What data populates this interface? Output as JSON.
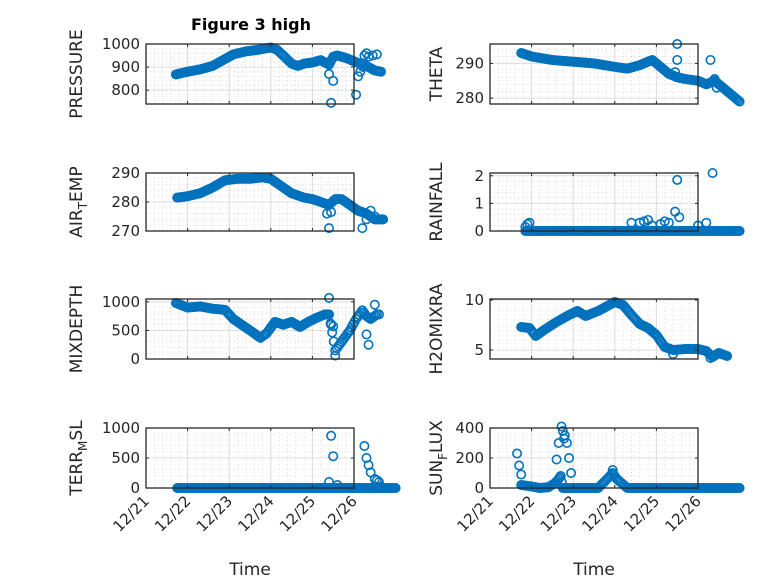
{
  "figure_title": "Figure 3 high",
  "chart_data": [
    {
      "type": "scatter",
      "id": "pressure",
      "ylabel": "PRESSURE",
      "title": "Figure 3 high",
      "ylim": [
        740,
        1000
      ],
      "yticks": [
        800,
        900,
        1000
      ],
      "x_ticks": [
        "12/21",
        "12/22",
        "12/23",
        "12/24",
        "12/25",
        "12/26"
      ],
      "show_xticklabels": false,
      "grid": true,
      "x_unit": "days since 12/21",
      "curve": [
        [
          0.72,
          868
        ],
        [
          1.0,
          880
        ],
        [
          1.3,
          890
        ],
        [
          1.6,
          905
        ],
        [
          1.9,
          935
        ],
        [
          2.1,
          955
        ],
        [
          2.4,
          968
        ],
        [
          2.7,
          975
        ],
        [
          2.9,
          982
        ],
        [
          3.0,
          985
        ],
        [
          3.15,
          975
        ],
        [
          3.3,
          950
        ],
        [
          3.5,
          915
        ],
        [
          3.65,
          905
        ],
        [
          3.8,
          915
        ],
        [
          4.0,
          920
        ],
        [
          4.2,
          930
        ],
        [
          4.3,
          920
        ],
        [
          4.4,
          910
        ],
        [
          4.5,
          945
        ],
        [
          4.6,
          950
        ],
        [
          4.8,
          940
        ],
        [
          5.0,
          925
        ],
        [
          5.2,
          910
        ],
        [
          5.35,
          900
        ],
        [
          5.5,
          885
        ],
        [
          5.65,
          880
        ]
      ],
      "outliers": [
        [
          4.4,
          870
        ],
        [
          4.5,
          840
        ],
        [
          4.45,
          745
        ],
        [
          5.05,
          780
        ],
        [
          5.1,
          860
        ],
        [
          5.15,
          880
        ],
        [
          5.22,
          900
        ],
        [
          5.3,
          960
        ],
        [
          5.25,
          950
        ],
        [
          5.35,
          945
        ],
        [
          5.45,
          950
        ],
        [
          5.55,
          955
        ]
      ]
    },
    {
      "type": "scatter",
      "id": "theta",
      "ylabel": "THETA",
      "ylim": [
        278.3,
        295.6
      ],
      "yticks": [
        280,
        290
      ],
      "x_ticks": [
        "12/21",
        "12/22",
        "12/23",
        "12/24",
        "12/25",
        "12/26"
      ],
      "show_xticklabels": false,
      "grid": true,
      "curve": [
        [
          0.75,
          293
        ],
        [
          1.0,
          292
        ],
        [
          1.5,
          291
        ],
        [
          2.0,
          290.5
        ],
        [
          2.5,
          290
        ],
        [
          3.0,
          289
        ],
        [
          3.3,
          288.5
        ],
        [
          3.6,
          289.5
        ],
        [
          3.9,
          291
        ],
        [
          4.1,
          289
        ],
        [
          4.3,
          287
        ],
        [
          4.5,
          286
        ],
        [
          4.7,
          285.5
        ],
        [
          5.0,
          285
        ],
        [
          5.2,
          284
        ],
        [
          5.4,
          285
        ],
        [
          5.6,
          283
        ],
        [
          5.8,
          281
        ],
        [
          6.0,
          279
        ]
      ],
      "outliers": [
        [
          4.5,
          295.6
        ],
        [
          4.5,
          291
        ],
        [
          4.45,
          287.5
        ],
        [
          5.3,
          291
        ],
        [
          5.4,
          285.5
        ],
        [
          5.45,
          283
        ]
      ]
    },
    {
      "type": "scatter",
      "id": "airtemp",
      "ylabel": "AIR_TEMP",
      "ylim": [
        270,
        290
      ],
      "yticks": [
        270,
        280,
        290
      ],
      "x_ticks": [
        "12/21",
        "12/22",
        "12/23",
        "12/24",
        "12/25",
        "12/26"
      ],
      "show_xticklabels": false,
      "grid": true,
      "curve": [
        [
          0.75,
          281.5
        ],
        [
          1.0,
          282
        ],
        [
          1.3,
          283
        ],
        [
          1.6,
          285
        ],
        [
          1.9,
          287.5
        ],
        [
          2.2,
          288
        ],
        [
          2.5,
          288
        ],
        [
          2.8,
          288.5
        ],
        [
          3.0,
          288
        ],
        [
          3.2,
          286
        ],
        [
          3.5,
          283
        ],
        [
          3.8,
          281.5
        ],
        [
          4.0,
          281
        ],
        [
          4.2,
          280
        ],
        [
          4.4,
          279
        ],
        [
          4.55,
          281
        ],
        [
          4.7,
          281
        ],
        [
          4.9,
          279
        ],
        [
          5.1,
          277
        ],
        [
          5.3,
          276
        ],
        [
          5.5,
          274
        ],
        [
          5.7,
          274
        ]
      ],
      "outliers": [
        [
          4.35,
          276
        ],
        [
          4.45,
          276.5
        ],
        [
          4.4,
          271
        ],
        [
          5.2,
          271
        ],
        [
          5.3,
          274
        ],
        [
          5.4,
          277
        ],
        [
          5.5,
          275
        ]
      ]
    },
    {
      "type": "scatter",
      "id": "rainfall",
      "ylabel": "RAINFALL",
      "ylim": [
        0,
        2.1
      ],
      "yticks": [
        0,
        1,
        2
      ],
      "x_ticks": [
        "12/21",
        "12/22",
        "12/23",
        "12/24",
        "12/25",
        "12/26"
      ],
      "show_xticklabels": false,
      "grid": true,
      "curve": [
        [
          0.85,
          0
        ],
        [
          6.0,
          0
        ]
      ],
      "outliers": [
        [
          0.85,
          0.15
        ],
        [
          0.9,
          0.25
        ],
        [
          0.95,
          0.3
        ],
        [
          3.4,
          0.3
        ],
        [
          3.6,
          0.3
        ],
        [
          3.7,
          0.35
        ],
        [
          3.8,
          0.4
        ],
        [
          3.9,
          0.2
        ],
        [
          4.1,
          0.25
        ],
        [
          4.2,
          0.35
        ],
        [
          4.3,
          0.3
        ],
        [
          4.45,
          0.7
        ],
        [
          4.5,
          1.85
        ],
        [
          4.55,
          0.5
        ],
        [
          5.0,
          0.2
        ],
        [
          5.2,
          0.3
        ],
        [
          5.35,
          2.1
        ]
      ]
    },
    {
      "type": "scatter",
      "id": "mixdepth",
      "ylabel": "MIXDEPTH",
      "ylim": [
        0,
        1050
      ],
      "yticks": [
        0,
        500,
        1000
      ],
      "x_ticks": [
        "12/21",
        "12/22",
        "12/23",
        "12/24",
        "12/25",
        "12/26"
      ],
      "show_xticklabels": false,
      "grid": true,
      "curve": [
        [
          0.72,
          980
        ],
        [
          1.0,
          900
        ],
        [
          1.3,
          920
        ],
        [
          1.6,
          880
        ],
        [
          1.9,
          860
        ],
        [
          2.1,
          700
        ],
        [
          2.3,
          600
        ],
        [
          2.6,
          450
        ],
        [
          2.75,
          370
        ],
        [
          2.9,
          450
        ],
        [
          3.1,
          650
        ],
        [
          3.3,
          600
        ],
        [
          3.5,
          650
        ],
        [
          3.7,
          560
        ],
        [
          3.9,
          650
        ],
        [
          4.1,
          720
        ],
        [
          4.3,
          780
        ],
        [
          4.4,
          780
        ],
        [
          4.55,
          150
        ],
        [
          4.7,
          300
        ],
        [
          4.9,
          500
        ],
        [
          5.05,
          700
        ],
        [
          5.2,
          850
        ],
        [
          5.3,
          750
        ],
        [
          5.4,
          700
        ],
        [
          5.55,
          780
        ]
      ],
      "outliers": [
        [
          4.4,
          1070
        ],
        [
          4.45,
          600
        ],
        [
          4.5,
          570
        ],
        [
          4.55,
          60
        ],
        [
          5.3,
          430
        ],
        [
          5.35,
          250
        ],
        [
          5.5,
          950
        ],
        [
          5.6,
          780
        ]
      ]
    },
    {
      "type": "scatter",
      "id": "h2omixra",
      "ylabel": "H2OMIXRA",
      "ylim": [
        4.1,
        10.1
      ],
      "yticks": [
        5,
        10
      ],
      "x_ticks": [
        "12/21",
        "12/22",
        "12/23",
        "12/24",
        "12/25",
        "12/26"
      ],
      "show_xticklabels": false,
      "grid": true,
      "curve": [
        [
          0.75,
          7.3
        ],
        [
          0.95,
          7.2
        ],
        [
          1.1,
          6.4
        ],
        [
          1.3,
          7.0
        ],
        [
          1.6,
          7.8
        ],
        [
          1.9,
          8.5
        ],
        [
          2.1,
          8.9
        ],
        [
          2.3,
          8.4
        ],
        [
          2.6,
          8.9
        ],
        [
          3.0,
          9.8
        ],
        [
          3.2,
          9.5
        ],
        [
          3.4,
          8.5
        ],
        [
          3.6,
          7.6
        ],
        [
          3.8,
          7.2
        ],
        [
          4.0,
          6.5
        ],
        [
          4.2,
          5.3
        ],
        [
          4.4,
          5.0
        ],
        [
          4.7,
          5.1
        ],
        [
          5.0,
          5.1
        ],
        [
          5.2,
          4.9
        ],
        [
          5.35,
          4.3
        ],
        [
          5.5,
          4.7
        ],
        [
          5.7,
          4.4
        ]
      ],
      "outliers": [
        [
          4.4,
          4.6
        ],
        [
          5.3,
          4.2
        ]
      ]
    },
    {
      "type": "scatter",
      "id": "terrmsl",
      "ylabel": "TERR_MSL",
      "ylim": [
        0,
        1000
      ],
      "yticks": [
        0,
        500,
        1000
      ],
      "x_ticks": [
        "12/21",
        "12/22",
        "12/23",
        "12/24",
        "12/25",
        "12/26"
      ],
      "show_xticklabels": true,
      "xlabel": "Time",
      "grid": true,
      "curve": [
        [
          0.75,
          0
        ],
        [
          6.0,
          0
        ]
      ],
      "outliers": [
        [
          4.45,
          870
        ],
        [
          4.5,
          530
        ],
        [
          4.4,
          100
        ],
        [
          4.6,
          50
        ],
        [
          5.25,
          700
        ],
        [
          5.3,
          500
        ],
        [
          5.35,
          380
        ],
        [
          5.4,
          260
        ],
        [
          5.5,
          150
        ],
        [
          5.55,
          130
        ],
        [
          5.6,
          100
        ],
        [
          5.5,
          20
        ],
        [
          5.65,
          20
        ]
      ]
    },
    {
      "type": "scatter",
      "id": "sunflux",
      "ylabel": "SUN_FLUX",
      "ylim": [
        0,
        400
      ],
      "yticks": [
        0,
        200,
        400
      ],
      "x_ticks": [
        "12/21",
        "12/22",
        "12/23",
        "12/24",
        "12/25",
        "12/26"
      ],
      "show_xticklabels": true,
      "xlabel": "Time",
      "grid": true,
      "curve": [
        [
          0.75,
          20
        ],
        [
          1.0,
          10
        ],
        [
          1.2,
          0
        ],
        [
          1.4,
          5
        ],
        [
          1.55,
          30
        ],
        [
          1.65,
          60
        ],
        [
          1.7,
          80
        ],
        [
          1.75,
          0
        ],
        [
          2.0,
          0
        ],
        [
          2.6,
          0
        ],
        [
          2.85,
          70
        ],
        [
          2.95,
          100
        ],
        [
          3.05,
          60
        ],
        [
          3.3,
          0
        ],
        [
          6.0,
          0
        ]
      ],
      "outliers": [
        [
          0.65,
          230
        ],
        [
          0.7,
          150
        ],
        [
          0.75,
          90
        ],
        [
          1.6,
          190
        ],
        [
          1.65,
          300
        ],
        [
          1.72,
          410
        ],
        [
          1.75,
          380
        ],
        [
          1.8,
          350
        ],
        [
          1.85,
          300
        ],
        [
          1.78,
          330
        ],
        [
          1.9,
          200
        ],
        [
          1.95,
          100
        ],
        [
          2.95,
          120
        ]
      ]
    }
  ]
}
